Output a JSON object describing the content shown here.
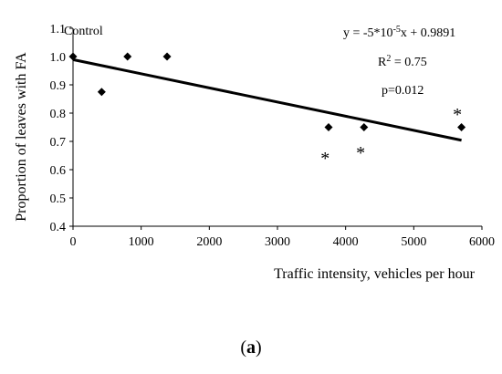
{
  "chart_data": {
    "type": "scatter",
    "xlabel": "Traffic intensity, vehicles per hour",
    "ylabel": "Proportion of leaves with FA",
    "xlim": [
      0,
      6000
    ],
    "ylim": [
      0.4,
      1.1
    ],
    "x_ticks": [
      "0",
      "1000",
      "2000",
      "3000",
      "4000",
      "5000",
      "6000"
    ],
    "y_ticks": [
      "0.4",
      "0.5",
      "0.6",
      "0.7",
      "0.8",
      "0.9",
      "1.0",
      "1.1"
    ],
    "points": [
      {
        "x": 0,
        "y": 1.0
      },
      {
        "x": 420,
        "y": 0.875
      },
      {
        "x": 800,
        "y": 1.0
      },
      {
        "x": 1380,
        "y": 1.0
      },
      {
        "x": 3750,
        "y": 0.75
      },
      {
        "x": 4270,
        "y": 0.75
      },
      {
        "x": 5700,
        "y": 0.75
      }
    ],
    "trendline": {
      "slope": -5e-05,
      "intercept": 0.9891,
      "x_range": [
        0,
        5700
      ]
    },
    "point_label": "Control",
    "significance_marker": "*",
    "significance_markers": [
      {
        "x": 3700,
        "y": 0.645
      },
      {
        "x": 4220,
        "y": 0.665
      },
      {
        "x": 5640,
        "y": 0.8
      }
    ],
    "equation": "y = -5*10",
    "equation_exp": "-5",
    "equation_tail": "x + 0.9891",
    "r2_prefix": "R",
    "r2_exp": "2",
    "r2_value": " = 0.75",
    "p_value": "p=0.012"
  },
  "caption": {
    "open": "(",
    "letter": "a",
    "close": ")"
  }
}
